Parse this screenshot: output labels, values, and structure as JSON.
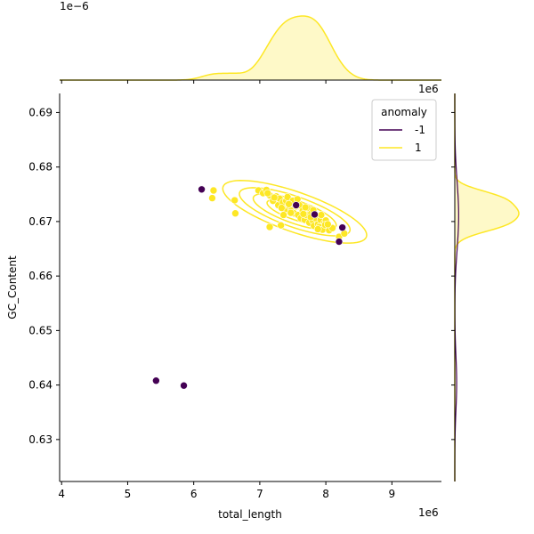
{
  "chart_data": {
    "type": "scatter",
    "title": "",
    "xlabel": "total_length",
    "ylabel": "GC_Content",
    "x_offset_label": "1e6",
    "y_offset_label": "1e6",
    "top_marginal_offset_label": "1e−6",
    "xlim": [
      3.97,
      9.75
    ],
    "ylim": [
      0.6223,
      0.6935
    ],
    "xticks": [
      4,
      5,
      6,
      7,
      8,
      9
    ],
    "yticks": [
      0.63,
      0.64,
      0.65,
      0.66,
      0.67,
      0.68,
      0.69
    ],
    "xtick_labels": [
      "4",
      "5",
      "6",
      "7",
      "8",
      "9"
    ],
    "ytick_labels": [
      "0.63",
      "0.64",
      "0.65",
      "0.66",
      "0.67",
      "0.68",
      "0.69"
    ],
    "legend": {
      "title": "anomaly",
      "placement": "top-right",
      "entries": [
        {
          "label": "-1",
          "color": "#440154"
        },
        {
          "label": "1",
          "color": "#fde725"
        }
      ]
    },
    "grid": false,
    "series": [
      {
        "name": "-1",
        "color": "#440154",
        "x": [
          5.43,
          5.85,
          6.12,
          7.55,
          7.83,
          8.2,
          8.25
        ],
        "y": [
          0.6408,
          0.6399,
          0.6759,
          0.673,
          0.6713,
          0.6663,
          0.6689
        ]
      },
      {
        "name": "1",
        "color": "#fde725",
        "x": [
          6.28,
          6.3,
          6.62,
          6.63,
          7.15,
          7.32,
          6.98,
          7.05,
          7.1,
          7.15,
          7.2,
          7.25,
          7.28,
          7.3,
          7.35,
          7.38,
          7.4,
          7.42,
          7.45,
          7.48,
          7.5,
          7.52,
          7.55,
          7.58,
          7.6,
          7.62,
          7.65,
          7.68,
          7.7,
          7.72,
          7.75,
          7.78,
          7.8,
          7.82,
          7.85,
          7.88,
          7.9,
          7.92,
          7.95,
          7.98,
          8.0,
          8.05,
          8.1,
          8.2,
          8.28,
          7.12,
          7.22,
          7.33,
          7.44,
          7.66,
          7.77,
          7.88,
          7.99,
          7.57,
          7.47,
          7.69,
          7.36,
          7.81,
          7.93,
          8.03
        ],
        "y": [
          0.6743,
          0.6757,
          0.6739,
          0.6715,
          0.669,
          0.6693,
          0.6757,
          0.6752,
          0.6758,
          0.6748,
          0.6738,
          0.6746,
          0.673,
          0.6742,
          0.6735,
          0.6722,
          0.6738,
          0.6745,
          0.6728,
          0.672,
          0.6738,
          0.6715,
          0.6728,
          0.6712,
          0.673,
          0.6706,
          0.672,
          0.6703,
          0.6712,
          0.6725,
          0.6698,
          0.6715,
          0.6702,
          0.6692,
          0.6706,
          0.6695,
          0.669,
          0.6703,
          0.6685,
          0.6698,
          0.6702,
          0.6684,
          0.6688,
          0.6672,
          0.6678,
          0.6752,
          0.6744,
          0.6725,
          0.6732,
          0.6714,
          0.6708,
          0.6686,
          0.6694,
          0.6741,
          0.6716,
          0.6726,
          0.6712,
          0.6721,
          0.6712,
          0.6695
        ]
      }
    ]
  }
}
